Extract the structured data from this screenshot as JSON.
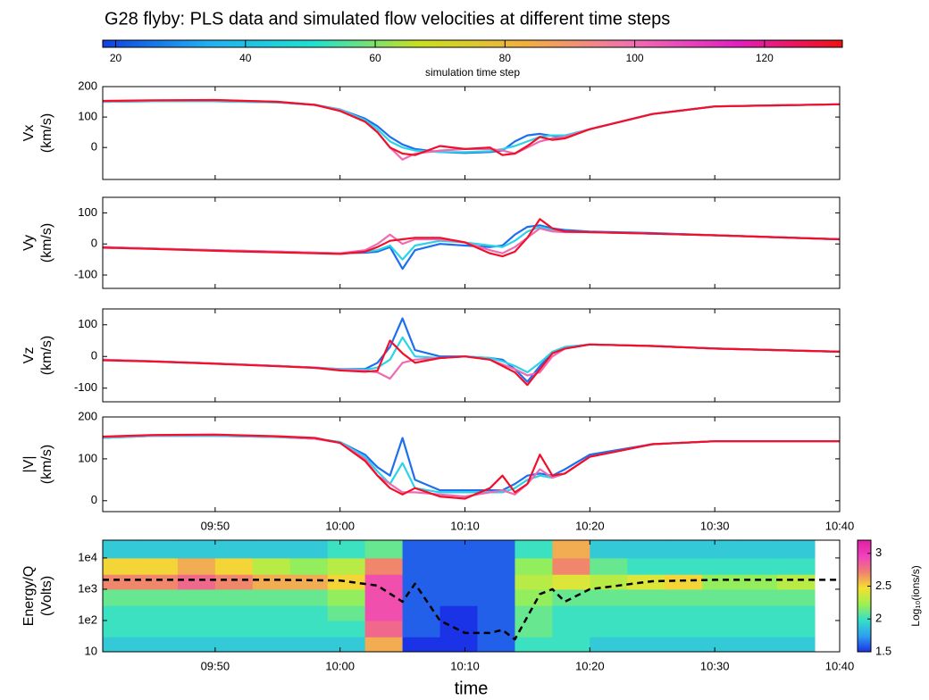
{
  "title": "G28 flyby: PLS data and simulated flow velocities at different time steps",
  "chart_data": [
    {
      "type": "colorbar",
      "xlabel": "simulation time step",
      "xlim": [
        18,
        132
      ],
      "xticks": [
        20,
        40,
        60,
        80,
        100,
        120
      ],
      "colormap": [
        "#1040e0",
        "#20b0f0",
        "#20e0d0",
        "#c8e020",
        "#f0b040",
        "#f070b0",
        "#e020c0",
        "#f01010"
      ]
    },
    {
      "type": "line",
      "ylabel": [
        "Vx",
        "(km/s)"
      ],
      "xlim": [
        "09:41",
        "10:40"
      ],
      "xticks": [
        "09:50",
        "10:00",
        "10:10",
        "10:20",
        "10:30",
        "10:40"
      ],
      "ylim": [
        -105,
        200
      ],
      "yticks": [
        0,
        100,
        200
      ],
      "x": [
        "09:41",
        "09:45",
        "09:50",
        "09:55",
        "09:58",
        "10:00",
        "10:02",
        "10:03",
        "10:04",
        "10:05",
        "10:06",
        "10:08",
        "10:10",
        "10:12",
        "10:13",
        "10:14",
        "10:15",
        "10:16",
        "10:17",
        "10:18",
        "10:20",
        "10:25",
        "10:30",
        "10:40"
      ],
      "series": [
        {
          "color": "#1e6ef0",
          "values": [
            150,
            152,
            152,
            148,
            140,
            125,
            95,
            70,
            35,
            10,
            -5,
            -15,
            -18,
            -15,
            -10,
            20,
            40,
            45,
            38,
            35,
            60,
            110,
            135,
            142
          ]
        },
        {
          "color": "#2ad4e6",
          "values": [
            150,
            152,
            152,
            148,
            140,
            125,
            90,
            60,
            20,
            0,
            -10,
            -15,
            -15,
            -12,
            -5,
            5,
            20,
            35,
            40,
            40,
            60,
            110,
            135,
            142
          ]
        },
        {
          "color": "#f06ab0",
          "values": [
            152,
            154,
            155,
            150,
            140,
            122,
            85,
            50,
            0,
            -40,
            -20,
            -10,
            -5,
            -5,
            -10,
            -20,
            0,
            20,
            30,
            35,
            60,
            110,
            135,
            142
          ]
        },
        {
          "color": "#f0102a",
          "values": [
            153,
            155,
            156,
            150,
            140,
            120,
            85,
            50,
            0,
            -20,
            -25,
            5,
            -5,
            0,
            -25,
            -20,
            5,
            35,
            25,
            30,
            60,
            110,
            135,
            142
          ]
        }
      ]
    },
    {
      "type": "line",
      "ylabel": [
        "Vy",
        "(km/s)"
      ],
      "xlim": [
        "09:41",
        "10:40"
      ],
      "xticks": [
        "09:50",
        "10:00",
        "10:10",
        "10:20",
        "10:30",
        "10:40"
      ],
      "ylim": [
        -143,
        150
      ],
      "yticks": [
        -100,
        0,
        100
      ],
      "x": [
        "09:41",
        "09:45",
        "09:50",
        "09:55",
        "09:58",
        "10:00",
        "10:02",
        "10:03",
        "10:04",
        "10:05",
        "10:06",
        "10:08",
        "10:10",
        "10:12",
        "10:13",
        "10:14",
        "10:15",
        "10:16",
        "10:17",
        "10:18",
        "10:20",
        "10:25",
        "10:30",
        "10:40"
      ],
      "series": [
        {
          "color": "#1e6ef0",
          "values": [
            -10,
            -15,
            -20,
            -25,
            -28,
            -30,
            -28,
            -25,
            -10,
            -80,
            -20,
            0,
            -5,
            -10,
            -5,
            30,
            55,
            60,
            50,
            45,
            40,
            35,
            28,
            15
          ]
        },
        {
          "color": "#2ad4e6",
          "values": [
            -10,
            -15,
            -20,
            -25,
            -28,
            -30,
            -25,
            -20,
            -5,
            -50,
            -5,
            10,
            5,
            -5,
            -10,
            10,
            40,
            55,
            45,
            40,
            38,
            33,
            28,
            15
          ]
        },
        {
          "color": "#f06ab0",
          "values": [
            -10,
            -15,
            -20,
            -25,
            -28,
            -30,
            -20,
            0,
            30,
            0,
            15,
            15,
            5,
            -20,
            -30,
            -10,
            20,
            50,
            40,
            38,
            38,
            33,
            28,
            15
          ]
        },
        {
          "color": "#f0102a",
          "values": [
            -12,
            -16,
            -22,
            -27,
            -30,
            -32,
            -25,
            -10,
            10,
            15,
            20,
            20,
            5,
            -30,
            -40,
            -25,
            20,
            80,
            50,
            40,
            38,
            33,
            28,
            15
          ]
        }
      ]
    },
    {
      "type": "line",
      "ylabel": [
        "Vz",
        "(km/s)"
      ],
      "xlim": [
        "09:41",
        "10:40"
      ],
      "xticks": [
        "09:50",
        "10:00",
        "10:10",
        "10:20",
        "10:30",
        "10:40"
      ],
      "ylim": [
        -143,
        150
      ],
      "yticks": [
        -100,
        0,
        100
      ],
      "x": [
        "09:41",
        "09:45",
        "09:50",
        "09:55",
        "09:58",
        "10:00",
        "10:02",
        "10:03",
        "10:04",
        "10:05",
        "10:06",
        "10:08",
        "10:10",
        "10:12",
        "10:13",
        "10:14",
        "10:15",
        "10:16",
        "10:17",
        "10:18",
        "10:20",
        "10:25",
        "10:30",
        "10:40"
      ],
      "series": [
        {
          "color": "#1e6ef0",
          "values": [
            -10,
            -15,
            -22,
            -30,
            -35,
            -40,
            -40,
            -20,
            30,
            120,
            20,
            0,
            0,
            -5,
            -10,
            -40,
            -80,
            -30,
            10,
            30,
            38,
            33,
            25,
            15
          ]
        },
        {
          "color": "#2ad4e6",
          "values": [
            -10,
            -15,
            -22,
            -30,
            -35,
            -40,
            -42,
            -35,
            -10,
            60,
            0,
            -5,
            0,
            -5,
            -15,
            -30,
            -50,
            -20,
            15,
            30,
            38,
            33,
            25,
            15
          ]
        },
        {
          "color": "#f06ab0",
          "values": [
            -10,
            -15,
            -22,
            -30,
            -35,
            -42,
            -45,
            -50,
            -70,
            -20,
            -10,
            -5,
            0,
            -10,
            -25,
            -40,
            -60,
            -50,
            0,
            25,
            38,
            33,
            25,
            15
          ]
        },
        {
          "color": "#f0102a",
          "values": [
            -12,
            -16,
            -23,
            -31,
            -36,
            -44,
            -48,
            -45,
            50,
            10,
            -20,
            -5,
            0,
            -10,
            -30,
            -50,
            -90,
            -40,
            10,
            25,
            38,
            33,
            25,
            15
          ]
        }
      ]
    },
    {
      "type": "line",
      "ylabel": [
        "|V|",
        "(km/s)"
      ],
      "xlim": [
        "09:41",
        "10:40"
      ],
      "xticks": [
        "09:50",
        "10:00",
        "10:10",
        "10:20",
        "10:30",
        "10:40"
      ],
      "xtick_labels": true,
      "ylim": [
        -26,
        200
      ],
      "yticks": [
        0,
        100,
        200
      ],
      "x": [
        "09:41",
        "09:45",
        "09:50",
        "09:55",
        "09:58",
        "10:00",
        "10:02",
        "10:03",
        "10:04",
        "10:05",
        "10:06",
        "10:08",
        "10:10",
        "10:12",
        "10:13",
        "10:14",
        "10:15",
        "10:16",
        "10:17",
        "10:18",
        "10:20",
        "10:25",
        "10:30",
        "10:40"
      ],
      "series": [
        {
          "color": "#1e6ef0",
          "values": [
            150,
            155,
            155,
            152,
            148,
            140,
            110,
            80,
            60,
            150,
            50,
            25,
            25,
            25,
            25,
            40,
            60,
            65,
            60,
            75,
            110,
            135,
            142,
            142
          ]
        },
        {
          "color": "#2ad4e6",
          "values": [
            150,
            155,
            155,
            152,
            148,
            140,
            105,
            70,
            40,
            90,
            30,
            20,
            20,
            20,
            20,
            30,
            50,
            60,
            55,
            65,
            105,
            135,
            142,
            142
          ]
        },
        {
          "color": "#f06ab0",
          "values": [
            152,
            156,
            157,
            153,
            148,
            138,
            100,
            60,
            40,
            20,
            20,
            15,
            10,
            20,
            25,
            15,
            40,
            75,
            55,
            65,
            105,
            135,
            142,
            142
          ]
        },
        {
          "color": "#f0102a",
          "values": [
            153,
            157,
            158,
            154,
            150,
            138,
            95,
            60,
            30,
            15,
            30,
            10,
            5,
            30,
            60,
            20,
            40,
            110,
            60,
            65,
            105,
            135,
            142,
            142
          ]
        }
      ]
    },
    {
      "type": "heatmap",
      "ylabel": [
        "Energy/Q",
        "(Volts)"
      ],
      "xlabel": "time",
      "log_y": true,
      "xlim": [
        "09:41",
        "10:40"
      ],
      "xticks": [
        "09:50",
        "10:00",
        "10:10",
        "10:20",
        "10:30",
        "10:40"
      ],
      "xtick_labels": true,
      "ylim": [
        10,
        37000
      ],
      "yticks": [
        10,
        {
          "value": 100,
          "label": "1e2"
        },
        {
          "value": 1000,
          "label": "1e3"
        },
        {
          "value": 10000,
          "label": "1e4"
        }
      ],
      "xbins": [
        "09:41",
        "09:44",
        "09:47",
        "09:50",
        "09:53",
        "09:56",
        "09:59",
        "10:02",
        "10:05",
        "10:08",
        "10:11",
        "10:14",
        "10:17",
        "10:20",
        "10:23",
        "10:26",
        "10:29",
        "10:32",
        "10:35",
        "10:38"
      ],
      "ybins": [
        10,
        30,
        100,
        300,
        1000,
        3000,
        10000,
        37000
      ],
      "z": [
        [
          1.9,
          1.9,
          1.9,
          1.9,
          1.9,
          1.9,
          1.9,
          2.6,
          1.5,
          1.5,
          1.6,
          2.0,
          2.0,
          1.9,
          1.9,
          1.9,
          1.9,
          1.9,
          1.9
        ],
        [
          2.0,
          2.0,
          2.0,
          2.0,
          2.0,
          2.0,
          2.0,
          2.8,
          1.6,
          1.5,
          1.6,
          2.1,
          2.0,
          2.0,
          2.0,
          2.0,
          2.0,
          2.0,
          2.0
        ],
        [
          2.0,
          2.0,
          2.0,
          2.0,
          2.0,
          2.0,
          2.1,
          2.9,
          1.6,
          1.5,
          1.6,
          2.1,
          2.0,
          2.0,
          2.0,
          2.0,
          2.0,
          2.0,
          2.0
        ],
        [
          2.1,
          2.1,
          2.1,
          2.1,
          2.1,
          2.1,
          2.2,
          2.9,
          1.6,
          1.6,
          1.6,
          2.2,
          2.1,
          2.1,
          2.1,
          2.1,
          2.1,
          2.1,
          2.1
        ],
        [
          2.7,
          2.7,
          2.8,
          2.7,
          2.6,
          2.6,
          2.5,
          2.9,
          1.6,
          1.6,
          1.6,
          2.3,
          2.4,
          2.3,
          2.4,
          2.5,
          2.2,
          2.2,
          2.3
        ],
        [
          2.5,
          2.5,
          2.6,
          2.5,
          2.3,
          2.2,
          2.3,
          2.7,
          1.6,
          1.6,
          1.6,
          2.2,
          2.7,
          2.1,
          2.0,
          2.0,
          2.0,
          2.0,
          2.0
        ],
        [
          1.9,
          1.9,
          1.9,
          1.9,
          1.9,
          1.9,
          2.0,
          2.1,
          1.6,
          1.6,
          1.6,
          2.0,
          2.6,
          1.9,
          1.9,
          1.9,
          1.9,
          1.9,
          1.9
        ]
      ],
      "zlim": [
        1.5,
        3.2
      ],
      "zticks": [
        1.5,
        2,
        2.5,
        3
      ],
      "zlabel": "Log₁₀(ions/s)",
      "colormap": [
        "#1a33e6",
        "#2ea0f0",
        "#35e0c8",
        "#a0f050",
        "#f5e030",
        "#f08070",
        "#f040c0",
        "#e020a0"
      ],
      "x": [
        "09:41",
        "09:50",
        "09:55",
        "10:00",
        "10:03",
        "10:05",
        "10:06",
        "10:08",
        "10:10",
        "10:12",
        "10:13",
        "10:14",
        "10:16",
        "10:17",
        "10:18",
        "10:20",
        "10:25",
        "10:30",
        "10:40"
      ],
      "series": [
        {
          "color": "#000000",
          "dashed": true,
          "values": [
            2000,
            2000,
            2000,
            1900,
            1300,
            400,
            1500,
            100,
            40,
            40,
            50,
            25,
            700,
            1000,
            400,
            1000,
            1800,
            2000,
            2000
          ]
        }
      ]
    }
  ]
}
